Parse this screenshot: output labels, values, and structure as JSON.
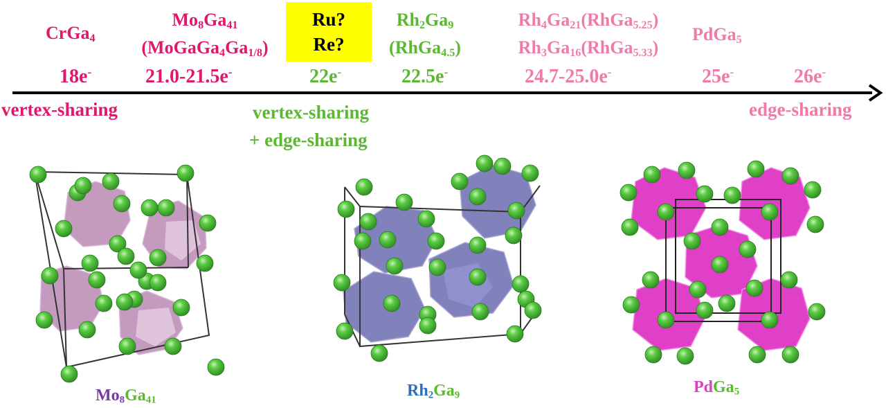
{
  "colors": {
    "magenta": "#e0186c",
    "pink": "#f07aaa",
    "green": "#5cb832",
    "purple": "#7a3aa8",
    "blue": "#2a6fc0",
    "ball": "#4bc23a",
    "mo_poly": "#b07aa8",
    "rh_poly": "#6b6bb0",
    "pd_poly": "#e040c8"
  },
  "compounds": {
    "crga4": {
      "base": "CrGa",
      "sub": "4",
      "electrons": "18e",
      "sup": "-"
    },
    "mo8ga41": {
      "l1_a": "Mo",
      "l1_a_sub": "8",
      "l1_b": "Ga",
      "l1_b_sub": "41",
      "l2_a": "(MoGaGa",
      "l2_a_sub": "4",
      "l2_b": "Ga",
      "l2_b_sub": "1/8",
      "l2_c": ")",
      "electrons": "21.0-21.5e",
      "sup": "-"
    },
    "ru_re": {
      "l1": "Ru?",
      "l2": "Re?",
      "electrons": "22e",
      "sup": "-"
    },
    "rh2ga9": {
      "l1_a": "Rh",
      "l1_a_sub": "2",
      "l1_b": "Ga",
      "l1_b_sub": "9",
      "l2_a": "(RhGa",
      "l2_a_sub": "4.5",
      "l2_b": ")",
      "electrons": "22.5e",
      "sup": "-"
    },
    "rh4ga21": {
      "l1_a": "Rh",
      "l1_a_sub": "4",
      "l1_b": "Ga",
      "l1_b_sub": "21",
      "l1_c": "(RhGa",
      "l1_c_sub": "5.25",
      "l1_d": ")",
      "l2_a": "Rh",
      "l2_a_sub": "3",
      "l2_b": "Ga",
      "l2_b_sub": "16",
      "l2_c": "(RhGa",
      "l2_c_sub": "5.33",
      "l2_d": ")",
      "electrons": "24.7-25.0e",
      "sup": "-"
    },
    "pdga5": {
      "base": "PdGa",
      "sub": "5",
      "electrons": "25e",
      "sup": "-"
    },
    "e26": {
      "electrons": "26e",
      "sup": "-"
    }
  },
  "sharing": {
    "left": "vertex-sharing",
    "mid_1": "vertex-sharing",
    "mid_2": "+ edge-sharing",
    "right": "edge-sharing"
  },
  "structure_labels": {
    "mo": {
      "a": "Mo",
      "a_sub": "8",
      "b": "Ga",
      "b_sub": "41"
    },
    "rh": {
      "a": "Rh",
      "a_sub": "2",
      "b": "Ga",
      "b_sub": "9"
    },
    "pd": {
      "a": "Pd",
      "b": "Ga",
      "b_sub": "5"
    }
  }
}
